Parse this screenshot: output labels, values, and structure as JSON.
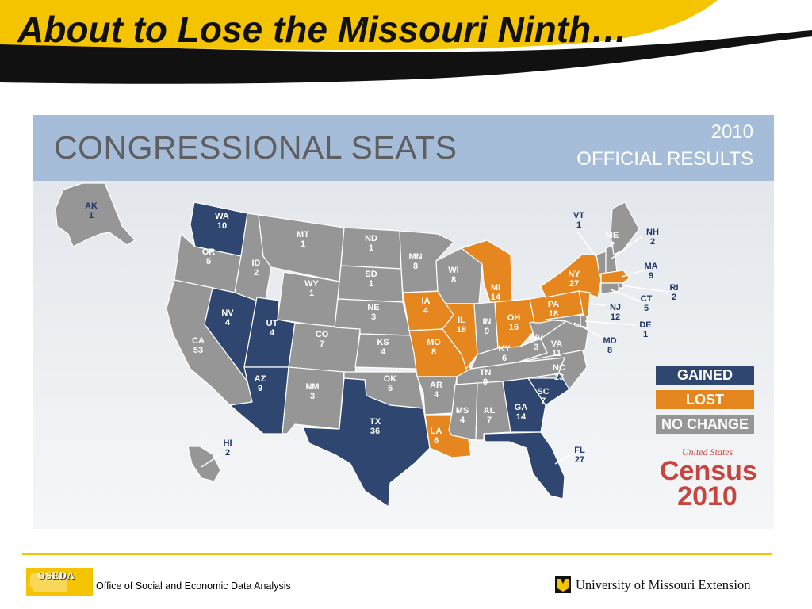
{
  "slide": {
    "title": "About to Lose the Missouri Ninth…"
  },
  "map": {
    "heading": "CONGRESSIONAL SEATS",
    "year": "2010",
    "subheading": "OFFICIAL RESULTS",
    "colors": {
      "gained": "#2e4670",
      "lost": "#e5861f",
      "no_change": "#969696",
      "label_dark": "#1f3566"
    },
    "states": {
      "AK": {
        "abbr": "AK",
        "seats": "1",
        "status": "no_change"
      },
      "HI": {
        "abbr": "HI",
        "seats": "2",
        "status": "no_change"
      },
      "WA": {
        "abbr": "WA",
        "seats": "10",
        "status": "gained"
      },
      "OR": {
        "abbr": "OR",
        "seats": "5",
        "status": "no_change"
      },
      "CA": {
        "abbr": "CA",
        "seats": "53",
        "status": "no_change"
      },
      "ID": {
        "abbr": "ID",
        "seats": "2",
        "status": "no_change"
      },
      "NV": {
        "abbr": "NV",
        "seats": "4",
        "status": "gained"
      },
      "MT": {
        "abbr": "MT",
        "seats": "1",
        "status": "no_change"
      },
      "WY": {
        "abbr": "WY",
        "seats": "1",
        "status": "no_change"
      },
      "UT": {
        "abbr": "UT",
        "seats": "4",
        "status": "gained"
      },
      "AZ": {
        "abbr": "AZ",
        "seats": "9",
        "status": "gained"
      },
      "CO": {
        "abbr": "CO",
        "seats": "7",
        "status": "no_change"
      },
      "NM": {
        "abbr": "NM",
        "seats": "3",
        "status": "no_change"
      },
      "ND": {
        "abbr": "ND",
        "seats": "1",
        "status": "no_change"
      },
      "SD": {
        "abbr": "SD",
        "seats": "1",
        "status": "no_change"
      },
      "NE": {
        "abbr": "NE",
        "seats": "3",
        "status": "no_change"
      },
      "KS": {
        "abbr": "KS",
        "seats": "4",
        "status": "no_change"
      },
      "OK": {
        "abbr": "OK",
        "seats": "5",
        "status": "no_change"
      },
      "TX": {
        "abbr": "TX",
        "seats": "36",
        "status": "gained"
      },
      "MN": {
        "abbr": "MN",
        "seats": "8",
        "status": "no_change"
      },
      "IA": {
        "abbr": "IA",
        "seats": "4",
        "status": "lost"
      },
      "MO": {
        "abbr": "MO",
        "seats": "8",
        "status": "lost"
      },
      "AR": {
        "abbr": "AR",
        "seats": "4",
        "status": "no_change"
      },
      "LA": {
        "abbr": "LA",
        "seats": "6",
        "status": "lost"
      },
      "WI": {
        "abbr": "WI",
        "seats": "8",
        "status": "no_change"
      },
      "IL": {
        "abbr": "IL",
        "seats": "18",
        "status": "lost"
      },
      "MI": {
        "abbr": "MI",
        "seats": "14",
        "status": "lost"
      },
      "IN": {
        "abbr": "IN",
        "seats": "9",
        "status": "no_change"
      },
      "OH": {
        "abbr": "OH",
        "seats": "16",
        "status": "lost"
      },
      "KY": {
        "abbr": "KY",
        "seats": "6",
        "status": "no_change"
      },
      "TN": {
        "abbr": "TN",
        "seats": "9",
        "status": "no_change"
      },
      "MS": {
        "abbr": "MS",
        "seats": "4",
        "status": "no_change"
      },
      "AL": {
        "abbr": "AL",
        "seats": "7",
        "status": "no_change"
      },
      "GA": {
        "abbr": "GA",
        "seats": "14",
        "status": "gained"
      },
      "FL": {
        "abbr": "FL",
        "seats": "27",
        "status": "gained"
      },
      "SC": {
        "abbr": "SC",
        "seats": "7",
        "status": "gained"
      },
      "NC": {
        "abbr": "NC",
        "seats": "13",
        "status": "no_change"
      },
      "VA": {
        "abbr": "VA",
        "seats": "11",
        "status": "no_change"
      },
      "WV": {
        "abbr": "WV",
        "seats": "3",
        "status": "no_change"
      },
      "PA": {
        "abbr": "PA",
        "seats": "18",
        "status": "lost"
      },
      "NY": {
        "abbr": "NY",
        "seats": "27",
        "status": "lost"
      },
      "VT": {
        "abbr": "VT",
        "seats": "1",
        "status": "no_change"
      },
      "NH": {
        "abbr": "NH",
        "seats": "2",
        "status": "no_change"
      },
      "ME": {
        "abbr": "ME",
        "seats": "2",
        "status": "no_change"
      },
      "MA": {
        "abbr": "MA",
        "seats": "9",
        "status": "lost"
      },
      "RI": {
        "abbr": "RI",
        "seats": "2",
        "status": "no_change"
      },
      "CT": {
        "abbr": "CT",
        "seats": "5",
        "status": "no_change"
      },
      "NJ": {
        "abbr": "NJ",
        "seats": "12",
        "status": "lost"
      },
      "DE": {
        "abbr": "DE",
        "seats": "1",
        "status": "no_change"
      },
      "MD": {
        "abbr": "MD",
        "seats": "8",
        "status": "no_change"
      }
    },
    "legend": [
      {
        "label": "GAINED",
        "status": "gained"
      },
      {
        "label": "LOST",
        "status": "lost"
      },
      {
        "label": "NO CHANGE",
        "status": "no_change"
      }
    ],
    "census_logo": {
      "top": "United States",
      "word": "Census",
      "year": "2010"
    }
  },
  "footer": {
    "oseda_logo_text": "OSEDA",
    "oseda_name": "Office of Social and Economic Data Analysis",
    "um_extension": "University of Missouri Extension"
  }
}
